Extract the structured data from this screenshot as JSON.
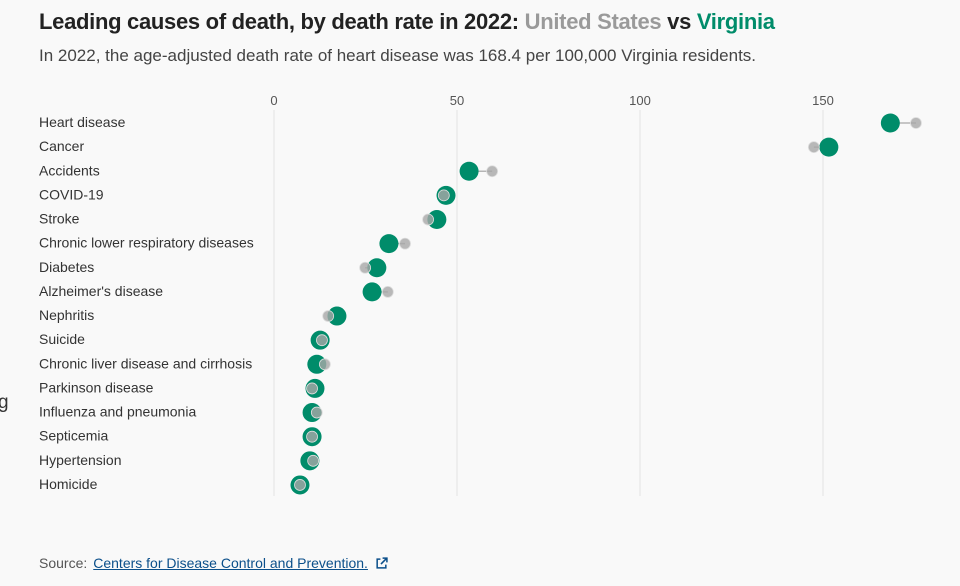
{
  "title": {
    "main": "Leading causes of death, by death rate in 2022:",
    "series_a": "United States",
    "joiner": "vs",
    "series_b": "Virginia"
  },
  "subtitle": "In 2022, the age-adjusted death rate of heart disease was 168.4 per 100,000 Virginia residents.",
  "edge_fragment": "g",
  "source": {
    "label": "Source:",
    "link": "Centers for Disease Control and Prevention."
  },
  "colors": {
    "us": "#a8a8a8",
    "virginia": "#008c6a",
    "grid": "#e2e2e2"
  },
  "chart_data": {
    "type": "dot",
    "xlim": [
      0,
      175
    ],
    "xticks": [
      0,
      50,
      100,
      150
    ],
    "grid": true,
    "categories": [
      "Heart disease",
      "Cancer",
      "Accidents",
      "COVID-19",
      "Stroke",
      "Chronic lower respiratory diseases",
      "Diabetes",
      "Alzheimer's disease",
      "Nephritis",
      "Suicide",
      "Chronic liver disease and cirrhosis",
      "Parkinson disease",
      "Influenza and pneumonia",
      "Septicemia",
      "Hypertension",
      "Homicide"
    ],
    "series": [
      {
        "name": "Virginia",
        "values": [
          168.4,
          151.6,
          53.3,
          47.0,
          44.5,
          31.4,
          28.1,
          26.8,
          17.2,
          12.6,
          11.7,
          11.2,
          10.4,
          10.4,
          9.8,
          7.1
        ]
      },
      {
        "name": "United States",
        "values": [
          175.4,
          147.5,
          59.6,
          46.4,
          42.1,
          35.8,
          24.9,
          31.1,
          14.8,
          13.1,
          13.9,
          10.4,
          11.7,
          10.4,
          10.7,
          7.1
        ]
      }
    ]
  }
}
